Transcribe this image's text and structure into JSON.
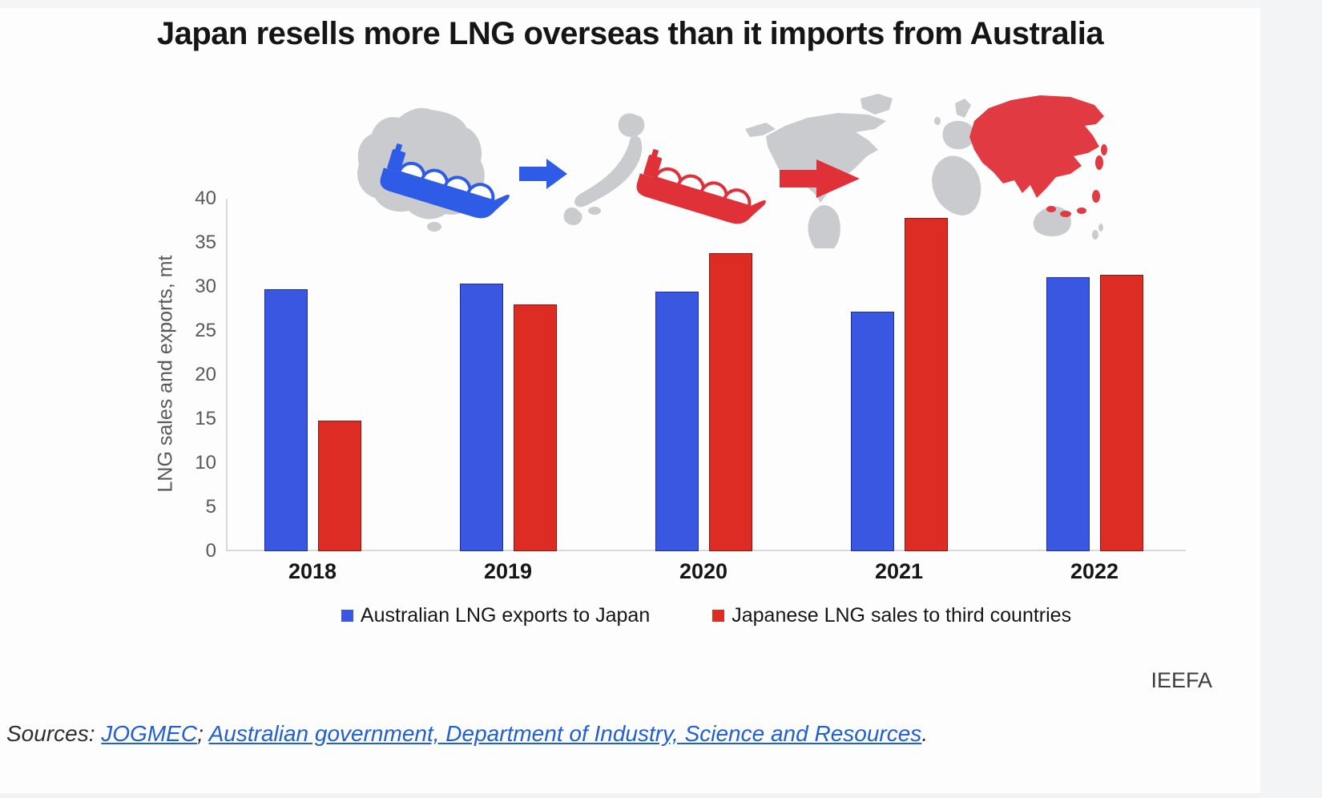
{
  "title": "Japan resells more LNG overseas than it imports from Australia",
  "attribution": "IEEFA",
  "sources": {
    "prefix": "Sources: ",
    "links": [
      {
        "label": "JOGMEC"
      },
      {
        "label": "Australian government, Department of Industry, Science and Resources"
      }
    ],
    "separator": "; ",
    "terminator": "."
  },
  "colors": {
    "series_blue": "#3a57e2",
    "series_red": "#dd2c24",
    "map_gray": "#c9cbce",
    "asia_red": "#e23a42",
    "arrow_blue": "#2e5ce6",
    "arrow_red": "#e03038",
    "link_blue": "#2060d0",
    "axis_gray": "#d8d9da"
  },
  "illustration": {
    "maps": [
      "australia-map",
      "japan-map",
      "world-map-asia-highlighted"
    ],
    "ships": [
      "blue-lng-tanker",
      "red-lng-tanker"
    ],
    "arrows": [
      "blue-right-arrow",
      "red-right-arrow"
    ]
  },
  "chart_data": {
    "type": "bar",
    "title": "Japan resells more LNG overseas than it imports from Australia",
    "xlabel": "",
    "ylabel": "LNG sales and exports, mt",
    "ylim": [
      0,
      40
    ],
    "yticks": [
      0,
      5,
      10,
      15,
      20,
      25,
      30,
      35,
      40
    ],
    "grid": false,
    "legend_position": "bottom",
    "categories": [
      "2018",
      "2019",
      "2020",
      "2021",
      "2022"
    ],
    "series": [
      {
        "name": "Australian LNG exports to Japan",
        "color": "#3a57e2",
        "edge": "#1d2f9a",
        "values": [
          29.7,
          30.4,
          29.5,
          27.2,
          31.1
        ]
      },
      {
        "name": "Japanese LNG sales to third countries",
        "color": "#dd2c24",
        "edge": "#8f1410",
        "values": [
          14.8,
          28.0,
          33.8,
          37.8,
          31.4
        ]
      }
    ]
  }
}
